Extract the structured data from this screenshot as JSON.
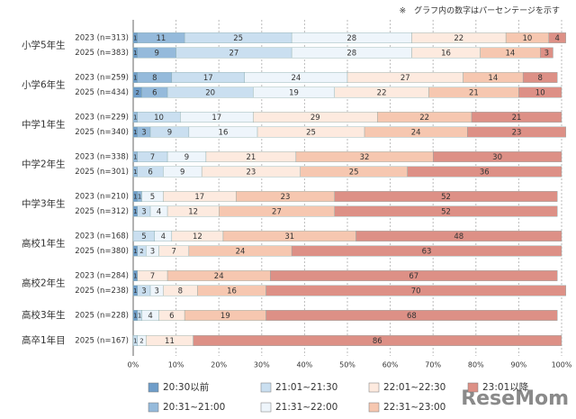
{
  "chart_data": {
    "type": "stacked-bar-horizontal",
    "note": "※　グラフ内の数字はパーセンテージを示す",
    "logo": "ReseMom",
    "groups": [
      {
        "label": "小学5年生",
        "categories": [
          "2023 (n=313)",
          "2025 (n=383)"
        ]
      },
      {
        "label": "小学6年生",
        "categories": [
          "2023 (n=259)",
          "2025 (n=434)"
        ]
      },
      {
        "label": "中学1年生",
        "categories": [
          "2023 (n=229)",
          "2025 (n=340)"
        ]
      },
      {
        "label": "中学2年生",
        "categories": [
          "2023 (n=338)",
          "2025 (n=301)"
        ]
      },
      {
        "label": "中学3年生",
        "categories": [
          "2023 (n=210)",
          "2025 (n=312)"
        ]
      },
      {
        "label": "高校1年生",
        "categories": [
          "2023 (n=168)",
          "2025 (n=380)"
        ]
      },
      {
        "label": "高校2年生",
        "categories": [
          "2023 (n=284)",
          "2025 (n=238)"
        ]
      },
      {
        "label": "高校3年生",
        "categories": [
          "2025 (n=228)"
        ]
      },
      {
        "label": "高卒1年目",
        "categories": [
          "2025 (n=167)"
        ]
      }
    ],
    "series": [
      {
        "name": "20:30以前",
        "color": "#6f9dc9",
        "values": [
          1,
          1,
          1,
          2,
          null,
          1,
          null,
          null,
          1,
          1,
          null,
          1,
          1,
          1,
          1,
          null
        ]
      },
      {
        "name": "20:31~21:00",
        "color": "#95badb",
        "values": [
          11,
          9,
          8,
          6,
          1,
          3,
          1,
          1,
          1,
          null,
          null,
          null,
          null,
          null,
          null,
          null
        ]
      },
      {
        "name": "21:01~21:30",
        "color": "#cadff0",
        "values": [
          25,
          27,
          17,
          20,
          10,
          9,
          7,
          6,
          null,
          3,
          5,
          2,
          null,
          3,
          1,
          1
        ]
      },
      {
        "name": "21:31~22:00",
        "color": "#eef5fb",
        "values": [
          28,
          28,
          24,
          19,
          17,
          16,
          9,
          9,
          5,
          4,
          4,
          3,
          null,
          3,
          4,
          2
        ]
      },
      {
        "name": "22:01~22:30",
        "color": "#fdeadf",
        "values": [
          22,
          16,
          27,
          22,
          29,
          25,
          21,
          23,
          17,
          12,
          12,
          7,
          7,
          8,
          6,
          11
        ]
      },
      {
        "name": "22:31~23:00",
        "color": "#f6c7b0",
        "values": [
          10,
          14,
          14,
          21,
          22,
          24,
          32,
          25,
          23,
          27,
          31,
          24,
          24,
          16,
          19,
          null
        ]
      },
      {
        "name": "23:01以降",
        "color": "#dd9086",
        "values": [
          4,
          3,
          8,
          10,
          21,
          23,
          30,
          36,
          52,
          52,
          48,
          63,
          67,
          70,
          68,
          86
        ]
      }
    ],
    "xlim": [
      0,
      100
    ],
    "xticks": [
      {
        "value": 0,
        "label": "0%"
      },
      {
        "value": 10,
        "label": "10%"
      },
      {
        "value": 20,
        "label": "20%"
      },
      {
        "value": 30,
        "label": "30%"
      },
      {
        "value": 40,
        "label": "40%"
      },
      {
        "value": 50,
        "label": "50%"
      },
      {
        "value": 60,
        "label": "60%"
      },
      {
        "value": 70,
        "label": "70%"
      },
      {
        "value": 80,
        "label": "80%"
      },
      {
        "value": 90,
        "label": "90%"
      },
      {
        "value": 100,
        "label": "100%"
      }
    ],
    "grid": true
  }
}
